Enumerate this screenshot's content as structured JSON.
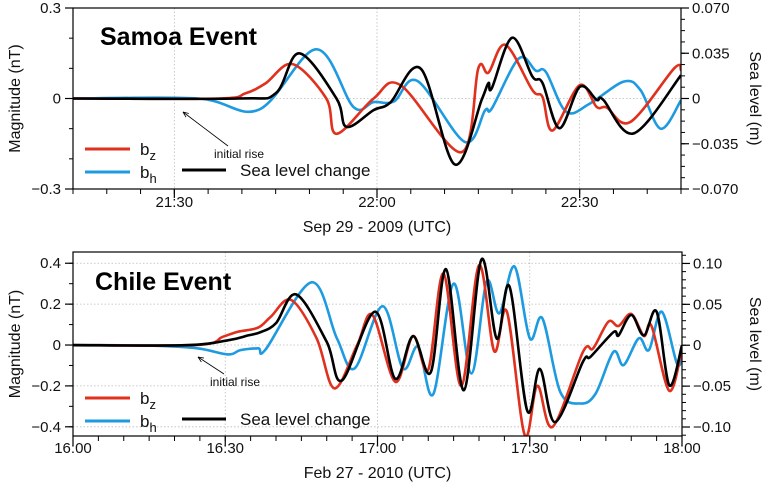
{
  "chart_data": [
    {
      "type": "line",
      "title": "Samoa Event",
      "xlabel": "Sep 29 - 2009 (UTC)",
      "ylabel": "Magnitude (nT)",
      "y2label": "Sea level (m)",
      "xlim": [
        "21:15:00",
        "22:45:00"
      ],
      "xticks": [
        "21:30",
        "22:00",
        "22:30"
      ],
      "ylim": [
        -0.3,
        0.3
      ],
      "yticks": [
        "-0.3",
        "0",
        "0.3"
      ],
      "y2lim": [
        -0.07,
        0.07
      ],
      "y2ticks": [
        "-0.070",
        "-0.035",
        "0",
        "0.035",
        "0.070"
      ],
      "grid": "dotted at major x ticks and y=0",
      "legend_placement": "bottom-left",
      "annotation": "initial rise",
      "series": [
        {
          "name": "b_z",
          "label_base": "b",
          "label_sub": "z",
          "color": "#e0301e",
          "axis": "left",
          "points": [
            [
              "21:15:00",
              0
            ],
            [
              "21:36:30",
              0
            ],
            [
              "21:40:30",
              0.017
            ],
            [
              "21:43:30",
              0.05
            ],
            [
              "21:47:30",
              0.114
            ],
            [
              "21:52:30",
              0
            ],
            [
              "21:54:00",
              -0.117
            ],
            [
              "21:59:30",
              0
            ],
            [
              "22:03:30",
              0.044
            ],
            [
              "22:12:30",
              -0.178
            ],
            [
              "22:15:00",
              0.1
            ],
            [
              "22:16:30",
              0.086
            ],
            [
              "22:19:00",
              0.178
            ],
            [
              "22:23:00",
              0.028
            ],
            [
              "22:24:30",
              0.005
            ],
            [
              "22:26:00",
              -0.106
            ],
            [
              "22:30:00",
              0.044
            ],
            [
              "22:32:30",
              -0.028
            ],
            [
              "22:34:00",
              -0.03
            ],
            [
              "22:37:30",
              -0.078
            ],
            [
              "22:44:00",
              0.1
            ],
            [
              "22:45:00",
              0.094
            ]
          ]
        },
        {
          "name": "b_h",
          "label_base": "b",
          "label_sub": "h",
          "color": "#1e9be0",
          "axis": "left",
          "points": [
            [
              "21:15:00",
              0
            ],
            [
              "21:33:30",
              0
            ],
            [
              "21:42:30",
              -0.037
            ],
            [
              "21:51:00",
              0.163
            ],
            [
              "21:56:30",
              -0.028
            ],
            [
              "21:59:30",
              -0.012
            ],
            [
              "22:02:30",
              -0.01
            ],
            [
              "22:06:00",
              0.058
            ],
            [
              "22:13:00",
              -0.144
            ],
            [
              "22:16:00",
              -0.039
            ],
            [
              "22:17:00",
              -0.033
            ],
            [
              "22:21:00",
              0.133
            ],
            [
              "22:23:30",
              0.092
            ],
            [
              "22:25:00",
              0.088
            ],
            [
              "22:28:00",
              -0.044
            ],
            [
              "22:31:30",
              -0.017
            ],
            [
              "22:36:30",
              0.056
            ],
            [
              "22:39:00",
              0.028
            ],
            [
              "22:42:00",
              -0.1
            ],
            [
              "22:45:00",
              -0.006
            ]
          ]
        },
        {
          "name": "Sea level change",
          "color": "#000000",
          "axis": "right",
          "points": [
            [
              "21:15:00",
              0
            ],
            [
              "21:39:30",
              0
            ],
            [
              "21:45:00",
              0.004
            ],
            [
              "21:48:30",
              0.035
            ],
            [
              "21:54:00",
              0
            ],
            [
              "21:55:30",
              -0.022
            ],
            [
              "21:59:30",
              -0.009
            ],
            [
              "22:02:00",
              -0.003
            ],
            [
              "22:06:30",
              0.023
            ],
            [
              "22:11:30",
              -0.051
            ],
            [
              "22:15:30",
              -0.001
            ],
            [
              "22:16:30",
              0.012
            ],
            [
              "22:17:00",
              0.008
            ],
            [
              "22:20:00",
              0.047
            ],
            [
              "22:23:00",
              0.017
            ],
            [
              "22:24:30",
              0.012
            ],
            [
              "22:27:00",
              -0.023
            ],
            [
              "22:30:00",
              0.009
            ],
            [
              "22:32:30",
              -0.001
            ],
            [
              "22:33:30",
              -0.001
            ],
            [
              "22:38:00",
              -0.027
            ],
            [
              "22:45:00",
              0.018
            ]
          ]
        }
      ]
    },
    {
      "type": "line",
      "title": "Chile Event",
      "xlabel": "Feb 27 - 2010 (UTC)",
      "ylabel": "Magnitude (nT)",
      "y2label": "Sea level (m)",
      "xlim": [
        "16:00:00",
        "18:00:00"
      ],
      "xticks": [
        "16:00",
        "16:30",
        "17:00",
        "17:30",
        "18:00"
      ],
      "ylim": [
        -0.445,
        0.455
      ],
      "yticks": [
        "-0.4",
        "-0.2",
        "0",
        "0.2",
        "0.4"
      ],
      "y2lim": [
        -0.111,
        0.114
      ],
      "y2ticks": [
        "-0.10",
        "-0.05",
        "0",
        "0.05",
        "0.10"
      ],
      "grid": "dotted at major ticks",
      "legend_placement": "bottom-left",
      "annotation": "initial rise",
      "series": [
        {
          "name": "b_z",
          "label_base": "b",
          "label_sub": "z",
          "color": "#e0301e",
          "axis": "left",
          "points": [
            [
              "16:00:00",
              0
            ],
            [
              "16:24:30",
              0
            ],
            [
              "16:29:30",
              0.04
            ],
            [
              "16:32:30",
              0.065
            ],
            [
              "16:36:30",
              0.085
            ],
            [
              "16:39:00",
              0.139
            ],
            [
              "16:43:00",
              0.22
            ],
            [
              "16:48:00",
              0.033
            ],
            [
              "16:51:30",
              -0.212
            ],
            [
              "16:56:00",
              0
            ],
            [
              "16:59:00",
              0.147
            ],
            [
              "17:03:30",
              -0.18
            ],
            [
              "17:07:00",
              0.044
            ],
            [
              "17:10:00",
              -0.12
            ],
            [
              "17:13:00",
              0.35
            ],
            [
              "17:16:30",
              -0.2
            ],
            [
              "17:20:00",
              0.39
            ],
            [
              "17:23:00",
              -0.03
            ],
            [
              "17:25:30",
              0.163
            ],
            [
              "17:29:00",
              -0.44
            ],
            [
              "17:31:30",
              -0.2
            ],
            [
              "17:34:30",
              -0.4
            ],
            [
              "17:40:30",
              -0.033
            ],
            [
              "17:42:30",
              -0.016
            ],
            [
              "17:45:30",
              0.114
            ],
            [
              "17:47:30",
              0.093
            ],
            [
              "17:50:00",
              0.152
            ],
            [
              "17:52:30",
              0.044
            ],
            [
              "17:54:00",
              0.093
            ],
            [
              "17:57:30",
              -0.224
            ],
            [
              "18:00:00",
              -0.016
            ]
          ]
        },
        {
          "name": "b_h",
          "label_base": "b",
          "label_sub": "h",
          "color": "#1e9be0",
          "axis": "left",
          "points": [
            [
              "16:00:00",
              0
            ],
            [
              "16:15:00",
              -0.003
            ],
            [
              "16:24:30",
              -0.016
            ],
            [
              "16:30:30",
              -0.046
            ],
            [
              "16:33:00",
              -0.025
            ],
            [
              "16:36:30",
              -0.016
            ],
            [
              "16:38:00",
              -0.02
            ],
            [
              "16:47:00",
              0.307
            ],
            [
              "16:52:00",
              0.033
            ],
            [
              "16:55:30",
              -0.114
            ],
            [
              "17:01:00",
              0.19
            ],
            [
              "17:05:00",
              -0.114
            ],
            [
              "17:08:00",
              -0.008
            ],
            [
              "17:11:00",
              -0.24
            ],
            [
              "17:15:00",
              0.3
            ],
            [
              "17:18:30",
              -0.139
            ],
            [
              "17:21:30",
              0.31
            ],
            [
              "17:24:00",
              0.155
            ],
            [
              "17:27:00",
              0.384
            ],
            [
              "17:30:00",
              0.033
            ],
            [
              "17:32:30",
              0.13
            ],
            [
              "17:36:00",
              -0.229
            ],
            [
              "17:40:00",
              -0.286
            ],
            [
              "17:43:00",
              -0.237
            ],
            [
              "17:46:30",
              -0.033
            ],
            [
              "17:48:30",
              -0.098
            ],
            [
              "17:51:30",
              0.033
            ],
            [
              "17:53:30",
              -0.024
            ],
            [
              "17:56:00",
              0.163
            ],
            [
              "17:59:00",
              -0.09
            ],
            [
              "18:00:00",
              -0.057
            ]
          ]
        },
        {
          "name": "Sea level change",
          "color": "#000000",
          "axis": "right",
          "points": [
            [
              "16:00:00",
              0
            ],
            [
              "16:22:00",
              0
            ],
            [
              "16:30:30",
              0.006
            ],
            [
              "16:34:30",
              0.012
            ],
            [
              "16:37:00",
              0.016
            ],
            [
              "16:40:00",
              0.027
            ],
            [
              "16:44:00",
              0.062
            ],
            [
              "16:50:00",
              0.004
            ],
            [
              "16:53:00",
              -0.043
            ],
            [
              "16:59:30",
              0.041
            ],
            [
              "17:03:30",
              -0.041
            ],
            [
              "17:07:00",
              0.011
            ],
            [
              "17:10:30",
              -0.033
            ],
            [
              "17:13:30",
              0.093
            ],
            [
              "17:17:00",
              -0.055
            ],
            [
              "17:20:30",
              0.105
            ],
            [
              "17:23:30",
              0.008
            ],
            [
              "17:26:00",
              0.072
            ],
            [
              "17:29:30",
              -0.08
            ],
            [
              "17:32:00",
              -0.029
            ],
            [
              "17:35:00",
              -0.094
            ],
            [
              "17:40:30",
              -0.02
            ],
            [
              "17:42:00",
              -0.014
            ],
            [
              "17:46:30",
              0.016
            ],
            [
              "17:47:30",
              0.012
            ],
            [
              "17:50:00",
              0.037
            ],
            [
              "17:52:30",
              0.012
            ],
            [
              "17:55:00",
              0.041
            ],
            [
              "17:57:30",
              -0.049
            ],
            [
              "18:00:00",
              0
            ]
          ]
        }
      ]
    }
  ]
}
